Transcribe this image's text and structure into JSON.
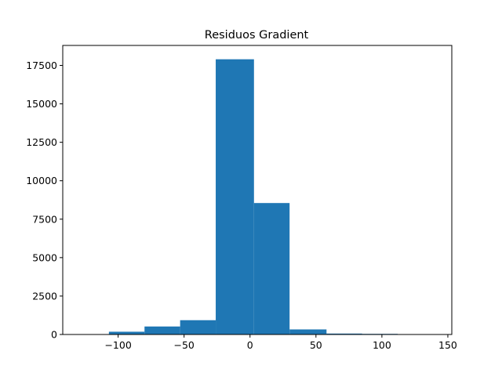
{
  "chart_data": {
    "type": "bar",
    "title": "Residuos Gradient",
    "xlabel": "",
    "ylabel": "",
    "bar_color": "#1f77b4",
    "grid": false,
    "xlim": [
      -142,
      153
    ],
    "ylim": [
      0,
      18800
    ],
    "bins": [
      {
        "x0": -107,
        "x1": -80,
        "value": 180
      },
      {
        "x0": -80,
        "x1": -53,
        "value": 520
      },
      {
        "x0": -53,
        "x1": -26,
        "value": 930
      },
      {
        "x0": -26,
        "x1": 3,
        "value": 17900
      },
      {
        "x0": 3,
        "x1": 30,
        "value": 8550
      },
      {
        "x0": 30,
        "x1": 58,
        "value": 330
      },
      {
        "x0": 58,
        "x1": 85,
        "value": 60
      },
      {
        "x0": 85,
        "x1": 112,
        "value": 40
      }
    ],
    "xticks": [
      {
        "value": -100,
        "label": "−100"
      },
      {
        "value": -50,
        "label": "−50"
      },
      {
        "value": 0,
        "label": "0"
      },
      {
        "value": 50,
        "label": "50"
      },
      {
        "value": 100,
        "label": "100"
      },
      {
        "value": 150,
        "label": "150"
      }
    ],
    "yticks": [
      {
        "value": 0,
        "label": "0"
      },
      {
        "value": 2500,
        "label": "2500"
      },
      {
        "value": 5000,
        "label": "5000"
      },
      {
        "value": 7500,
        "label": "7500"
      },
      {
        "value": 10000,
        "label": "10000"
      },
      {
        "value": 12500,
        "label": "12500"
      },
      {
        "value": 15000,
        "label": "15000"
      },
      {
        "value": 17500,
        "label": "17500"
      }
    ]
  }
}
